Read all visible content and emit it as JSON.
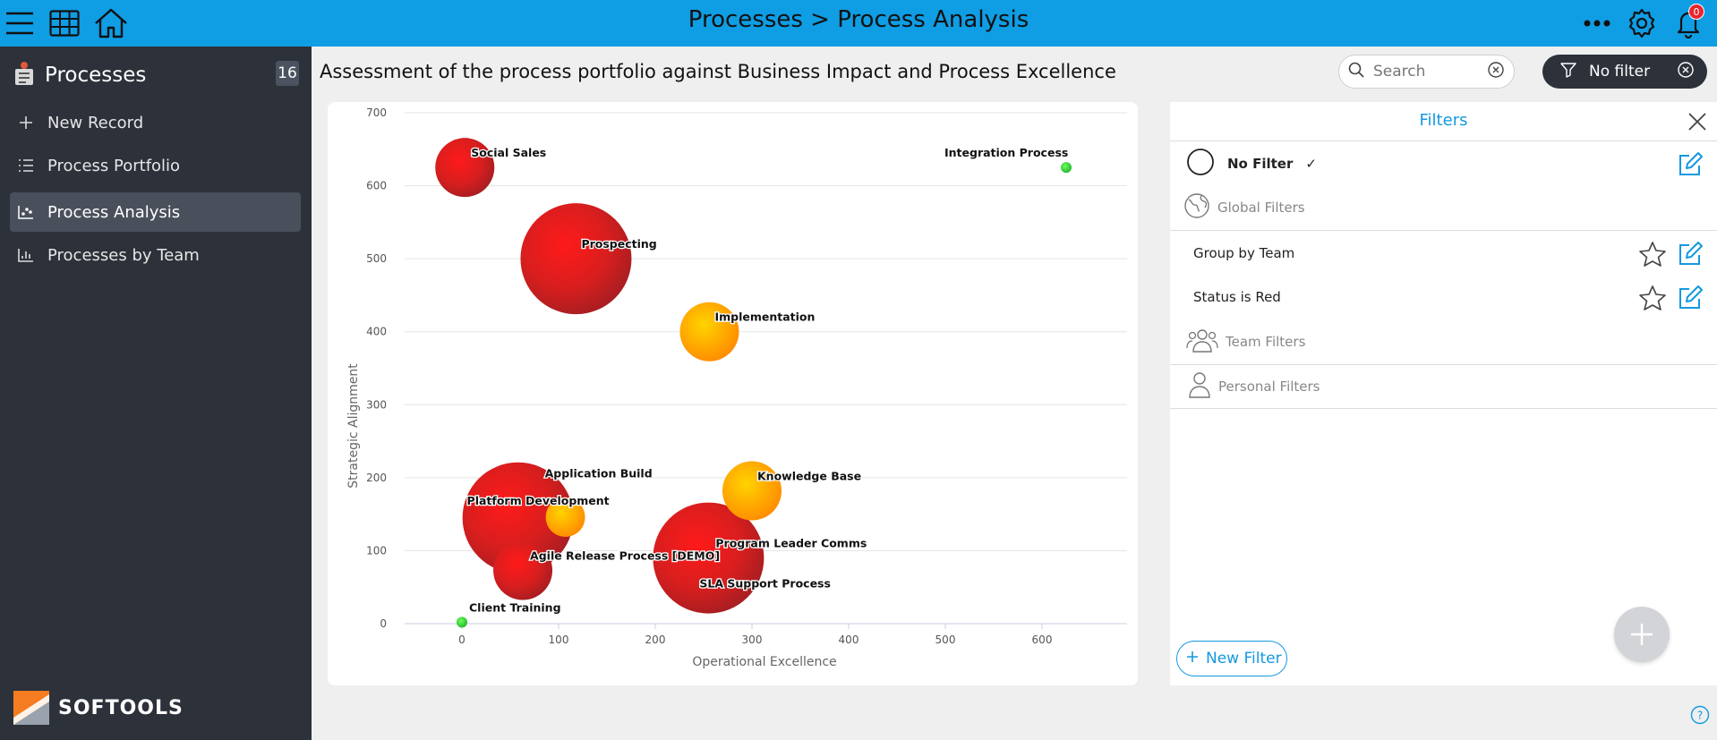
{
  "topbar": {
    "breadcrumb": "Processes > Process Analysis",
    "notification_count": "0",
    "icons": [
      "menu-icon",
      "grid-icon",
      "home-icon",
      "more-icon",
      "gear-icon",
      "bell-icon"
    ],
    "color": "#0f9de4"
  },
  "sidebar": {
    "app_name": "Processes",
    "count": "16",
    "items": [
      {
        "label": "New Record",
        "icon": "plus-icon"
      },
      {
        "label": "Process Portfolio",
        "icon": "list-icon"
      },
      {
        "label": "Process Analysis",
        "icon": "scatter-chart-icon",
        "active": true
      },
      {
        "label": "Processes by Team",
        "icon": "bar-chart-icon"
      }
    ],
    "logo_text": "SOFTOOLS",
    "color": "#2c313a"
  },
  "page": {
    "title": "Assessment of the process portfolio against Business Impact and Process Excellence"
  },
  "search": {
    "placeholder": "Search",
    "value": ""
  },
  "filter_button": {
    "label": "No filter"
  },
  "chart_data": {
    "type": "scatter",
    "title": "",
    "xlabel": "Operational Excellence",
    "ylabel": "Strategic Alignment",
    "xlim": [
      -60,
      690
    ],
    "ylim": [
      0,
      700
    ],
    "xticks": [
      0,
      100,
      200,
      300,
      400,
      500,
      600
    ],
    "yticks": [
      0,
      100,
      200,
      300,
      400,
      500,
      600,
      700
    ],
    "grid": true,
    "points": [
      {
        "name": "Social Sales",
        "x": 3,
        "y": 625,
        "size": 33,
        "status": "red"
      },
      {
        "name": "Integration Process",
        "x": 625,
        "y": 625,
        "size": 6,
        "status": "green"
      },
      {
        "name": "Prospecting",
        "x": 118,
        "y": 500,
        "size": 62,
        "status": "red"
      },
      {
        "name": "Implementation",
        "x": 256,
        "y": 400,
        "size": 33,
        "status": "amber"
      },
      {
        "name": "Knowledge Base",
        "x": 300,
        "y": 182,
        "size": 33,
        "status": "amber"
      },
      {
        "name": "Platform Development",
        "x": 107,
        "y": 146,
        "size": 22,
        "status": "amber"
      },
      {
        "name": "Agile Release Process [DEMO]",
        "x": 63,
        "y": 73,
        "size": 33,
        "status": "red"
      },
      {
        "name": "Application Build",
        "x": 58,
        "y": 145,
        "size": 62,
        "status": "red"
      },
      {
        "name": "Program Leader Comms",
        "x": 255,
        "y": 90,
        "size": 62,
        "status": "red"
      },
      {
        "name": "SLA Support Process",
        "x": 255,
        "y": 90,
        "size": 0,
        "status": "red"
      },
      {
        "name": "Client Training",
        "x": 0,
        "y": 2,
        "size": 6,
        "status": "green"
      }
    ],
    "status_colors": {
      "red": "#d21a1a",
      "amber": "#ffa600",
      "green": "#3cc94b"
    }
  },
  "filters_panel": {
    "title": "Filters",
    "no_filter_label": "No Filter",
    "check_mark": "✓",
    "sections": {
      "global": "Global Filters",
      "team": "Team Filters",
      "personal": "Personal Filters"
    },
    "global_filters": [
      "Group by Team",
      "Status is Red"
    ],
    "new_filter_label": "New Filter",
    "accent": "#1499df"
  }
}
